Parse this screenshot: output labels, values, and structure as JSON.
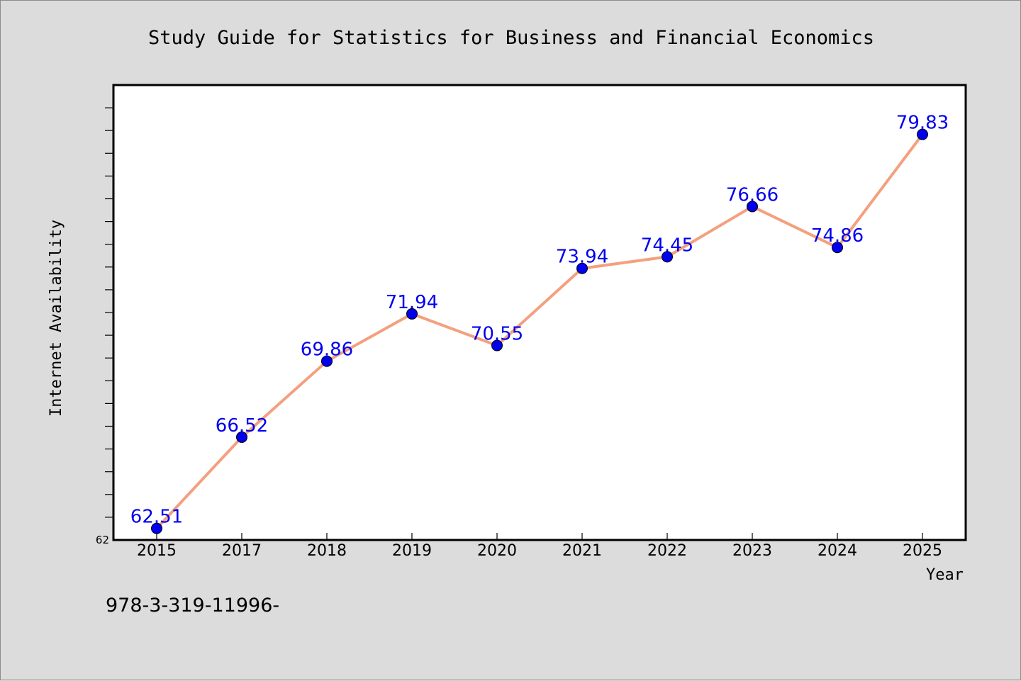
{
  "chart_data": {
    "type": "line",
    "title": "Study Guide for Statistics for Business and Financial Economics",
    "xlabel": "Year",
    "ylabel": "Internet Availability",
    "categories": [
      "2015",
      "2017",
      "2018",
      "2019",
      "2020",
      "2021",
      "2022",
      "2023",
      "2024",
      "2025"
    ],
    "series": [
      {
        "values": [
          62.51,
          66.52,
          69.86,
          71.94,
          70.55,
          73.94,
          74.45,
          76.66,
          74.86,
          79.83
        ],
        "data_labels": [
          "62.51",
          "66.52",
          "69.86",
          "71.94",
          "70.55",
          "73.94",
          "74.45",
          "76.66",
          "74.86",
          "79.83"
        ],
        "line_color": "#f4a07f",
        "marker_color": "#0000ee",
        "label_color": "#0000ee"
      }
    ],
    "ylim": [
      62,
      82
    ],
    "ytick_labels": [
      "62"
    ],
    "grid": false,
    "legend": "none"
  },
  "footer": {
    "text": "978-3-319-11996-"
  },
  "colors": {
    "background": "#dcdcdc",
    "plot_background": "#ffffff",
    "axes": "#000000"
  }
}
